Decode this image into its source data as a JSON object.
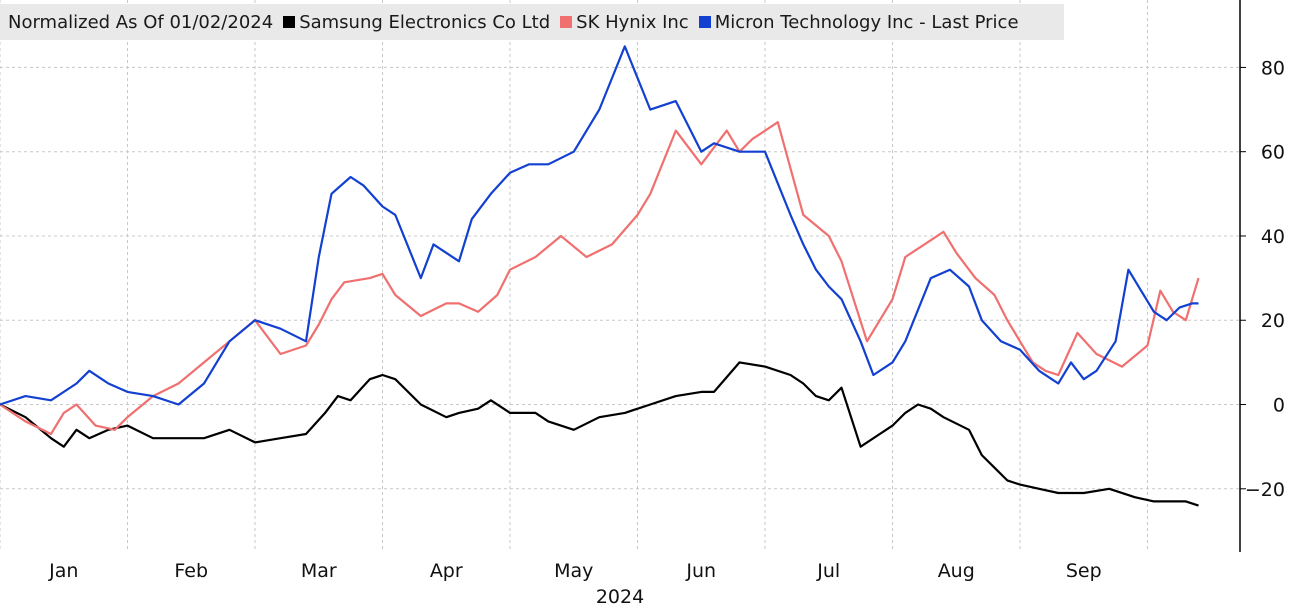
{
  "legend": {
    "caption": "Normalized As Of 01/02/2024",
    "items": [
      {
        "label": "Samsung Electronics Co Ltd",
        "color": "#000000"
      },
      {
        "label": "SK Hynix Inc",
        "color": "#f07070"
      },
      {
        "label": "Micron Technology Inc - Last Price",
        "color": "#1240d0"
      }
    ]
  },
  "chart_data": {
    "type": "line",
    "title": "",
    "xlabel": "2024",
    "ylabel": "",
    "x_axis": {
      "min": 0,
      "max": 9.3,
      "month_labels": [
        "Jan",
        "Feb",
        "Mar",
        "Apr",
        "May",
        "Jun",
        "Jul",
        "Aug",
        "Sep"
      ],
      "year_label": "2024"
    },
    "y_axis": {
      "min": -35,
      "max": 96,
      "ticks": [
        80,
        60,
        40,
        20,
        0,
        -20
      ],
      "position": "right"
    },
    "grid": true,
    "legend_position": "top-left",
    "series": [
      {
        "name": "Samsung Electronics Co Ltd",
        "color": "#000000",
        "x": [
          0,
          0.2,
          0.4,
          0.5,
          0.6,
          0.7,
          0.85,
          1.0,
          1.2,
          1.4,
          1.6,
          1.8,
          2.0,
          2.2,
          2.4,
          2.55,
          2.65,
          2.75,
          2.9,
          3.0,
          3.1,
          3.3,
          3.5,
          3.6,
          3.75,
          3.85,
          4.0,
          4.2,
          4.3,
          4.5,
          4.7,
          4.9,
          5.1,
          5.3,
          5.5,
          5.6,
          5.8,
          6.0,
          6.2,
          6.3,
          6.4,
          6.5,
          6.6,
          6.75,
          6.9,
          7.0,
          7.1,
          7.2,
          7.3,
          7.4,
          7.6,
          7.7,
          7.8,
          7.9,
          8.0,
          8.15,
          8.3,
          8.5,
          8.7,
          8.9,
          9.05,
          9.1,
          9.3,
          9.4
        ],
        "values": [
          0,
          -3,
          -8,
          -10,
          -6,
          -8,
          -6,
          -5,
          -8,
          -8,
          -8,
          -6,
          -9,
          -8,
          -7,
          -2,
          2,
          1,
          6,
          7,
          6,
          0,
          -3,
          -2,
          -1,
          1,
          -2,
          -2,
          -4,
          -6,
          -3,
          -2,
          0,
          2,
          3,
          3,
          10,
          9,
          7,
          5,
          2,
          1,
          4,
          -10,
          -7,
          -5,
          -2,
          0,
          -1,
          -3,
          -6,
          -12,
          -15,
          -18,
          -19,
          -20,
          -21,
          -21,
          -20,
          -22,
          -23,
          -23,
          -23,
          -24
        ]
      },
      {
        "name": "SK Hynix Inc",
        "color": "#f07070",
        "x": [
          0,
          0.2,
          0.4,
          0.5,
          0.6,
          0.75,
          0.9,
          1.0,
          1.2,
          1.4,
          1.6,
          1.8,
          2.0,
          2.2,
          2.4,
          2.5,
          2.6,
          2.7,
          2.9,
          3.0,
          3.1,
          3.3,
          3.5,
          3.6,
          3.75,
          3.9,
          4.0,
          4.2,
          4.4,
          4.6,
          4.8,
          5.0,
          5.1,
          5.3,
          5.5,
          5.7,
          5.8,
          5.9,
          6.1,
          6.3,
          6.5,
          6.6,
          6.8,
          7.0,
          7.1,
          7.25,
          7.4,
          7.5,
          7.65,
          7.8,
          7.9,
          8.0,
          8.1,
          8.2,
          8.3,
          8.45,
          8.6,
          8.8,
          9.0,
          9.1,
          9.2,
          9.3,
          9.4
        ],
        "values": [
          0,
          -4,
          -7,
          -2,
          0,
          -5,
          -6,
          -3,
          2,
          5,
          10,
          15,
          20,
          12,
          14,
          19,
          25,
          29,
          30,
          31,
          26,
          21,
          24,
          24,
          22,
          26,
          32,
          35,
          40,
          35,
          38,
          45,
          50,
          65,
          57,
          65,
          60,
          63,
          67,
          45,
          40,
          34,
          15,
          25,
          35,
          38,
          41,
          36,
          30,
          26,
          20,
          15,
          10,
          8,
          7,
          17,
          12,
          9,
          14,
          27,
          22,
          20,
          30
        ]
      },
      {
        "name": "Micron Technology Inc - Last Price",
        "color": "#1240d0",
        "x": [
          0,
          0.2,
          0.4,
          0.6,
          0.7,
          0.85,
          1.0,
          1.2,
          1.4,
          1.6,
          1.8,
          2.0,
          2.2,
          2.4,
          2.5,
          2.6,
          2.75,
          2.85,
          3.0,
          3.1,
          3.3,
          3.4,
          3.6,
          3.7,
          3.85,
          4.0,
          4.15,
          4.3,
          4.5,
          4.7,
          4.9,
          5.1,
          5.3,
          5.5,
          5.6,
          5.8,
          6.0,
          6.2,
          6.3,
          6.4,
          6.5,
          6.6,
          6.75,
          6.85,
          7.0,
          7.1,
          7.3,
          7.45,
          7.6,
          7.7,
          7.85,
          8.0,
          8.15,
          8.3,
          8.4,
          8.5,
          8.6,
          8.75,
          8.85,
          9.05,
          9.15,
          9.25,
          9.35,
          9.4
        ],
        "values": [
          0,
          2,
          1,
          5,
          8,
          5,
          3,
          2,
          0,
          5,
          15,
          20,
          18,
          15,
          35,
          50,
          54,
          52,
          47,
          45,
          30,
          38,
          34,
          44,
          50,
          55,
          57,
          57,
          60,
          70,
          85,
          70,
          72,
          60,
          62,
          60,
          60,
          45,
          38,
          32,
          28,
          25,
          15,
          7,
          10,
          15,
          30,
          32,
          28,
          20,
          15,
          13,
          8,
          5,
          10,
          6,
          8,
          15,
          32,
          22,
          20,
          23,
          24,
          24
        ]
      }
    ]
  }
}
